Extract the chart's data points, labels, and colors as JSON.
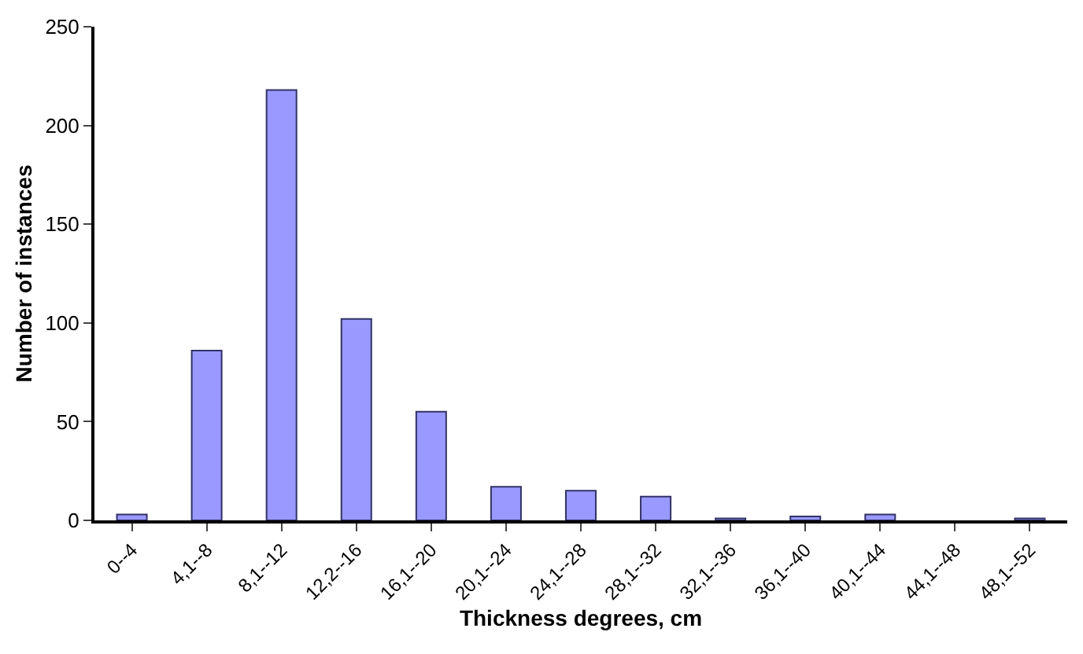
{
  "chart_data": {
    "type": "bar",
    "xlabel": "Thickness degrees, cm",
    "ylabel": "Number of instances",
    "categories": [
      "0--4",
      "4,1--8",
      "8,1--12",
      "12,2--16",
      "16,1--20",
      "20,1--24",
      "24,1--28",
      "28,1--32",
      "32,1--36",
      "36,1--40",
      "40,1--44",
      "44,1--48",
      "48,1--52"
    ],
    "values": [
      3,
      86,
      218,
      102,
      55,
      17,
      15,
      12,
      1,
      2,
      3,
      0,
      1
    ],
    "color": "#9999ff",
    "ylim": [
      0,
      250
    ],
    "yticks": [
      0,
      50,
      100,
      150,
      200,
      250
    ]
  }
}
